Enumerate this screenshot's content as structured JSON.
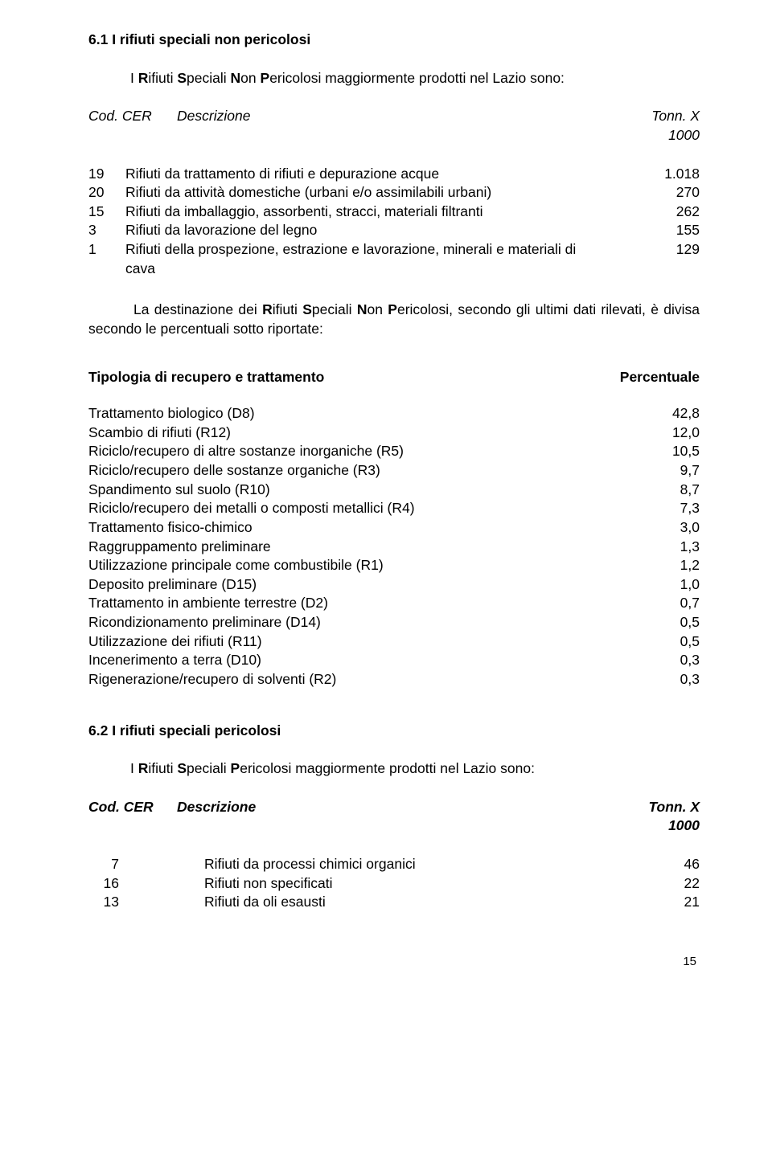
{
  "section1": {
    "heading": "6.1 I rifiuti speciali non pericolosi",
    "intro_pre": "I ",
    "intro_R": "R",
    "intro_ifiuti": "ifiuti ",
    "intro_S": "S",
    "intro_peciali": "peciali ",
    "intro_N": "N",
    "intro_on": "on ",
    "intro_P": "P",
    "intro_ericolosi": "ericolosi maggiormente prodotti nel Lazio sono:",
    "hdr_code": "Cod. CER",
    "hdr_desc": "Descrizione",
    "hdr_val": "Tonn. X 1000",
    "rows": [
      {
        "code": "19",
        "desc": "Rifiuti da trattamento di rifiuti e depurazione acque",
        "val": "1.018"
      },
      {
        "code": "20",
        "desc": "Rifiuti da attività domestiche (urbani e/o assimilabili urbani)",
        "val": "270"
      },
      {
        "code": "15",
        "desc": "Rifiuti da imballaggio, assorbenti, stracci, materiali filtranti",
        "val": "262"
      },
      {
        "code": " 3",
        "desc": "Rifiuti da lavorazione del legno",
        "val": "155"
      },
      {
        "code": " 1",
        "desc": "Rifiuti della prospezione, estrazione e lavorazione, minerali e materiali di cava",
        "val": "129"
      }
    ]
  },
  "para": {
    "t1": "La destinazione dei ",
    "R": "R",
    "ifiuti": "ifiuti ",
    "S": "S",
    "peciali": "peciali ",
    "N": "N",
    "on": "on ",
    "P": "P",
    "ericolosi": "ericolosi, secondo gli ultimi dati rilevati, è divisa secondo le percentuali sotto riportate:"
  },
  "recovery": {
    "hdr_left": "Tipologia di recupero e trattamento",
    "hdr_right": "Percentuale",
    "rows": [
      {
        "d": "Trattamento biologico (D8)",
        "v": "42,8"
      },
      {
        "d": "Scambio di rifiuti (R12)",
        "v": "12,0"
      },
      {
        "d": "Riciclo/recupero di altre sostanze inorganiche (R5)",
        "v": "10,5"
      },
      {
        "d": "Riciclo/recupero delle sostanze organiche (R3)",
        "v": "9,7"
      },
      {
        "d": "Spandimento sul suolo (R10)",
        "v": "8,7"
      },
      {
        "d": "Riciclo/recupero dei metalli o composti metallici (R4)",
        "v": "7,3"
      },
      {
        "d": "Trattamento fisico-chimico",
        "v": "3,0"
      },
      {
        "d": "Raggruppamento preliminare",
        "v": "1,3"
      },
      {
        "d": "Utilizzazione principale come combustibile (R1)",
        "v": "1,2"
      },
      {
        "d": "Deposito preliminare (D15)",
        "v": "1,0"
      },
      {
        "d": "Trattamento in ambiente terrestre (D2)",
        "v": "0,7"
      },
      {
        "d": "Ricondizionamento preliminare (D14)",
        "v": "0,5"
      },
      {
        "d": "Utilizzazione dei rifiuti (R11)",
        "v": "0,5"
      },
      {
        "d": "Incenerimento a terra (D10)",
        "v": "0,3"
      },
      {
        "d": "Rigenerazione/recupero di solventi (R2)",
        "v": "0,3"
      }
    ]
  },
  "section2": {
    "heading": "6.2 I rifiuti speciali pericolosi",
    "intro_pre": "I ",
    "intro_R": "R",
    "intro_ifiuti": "ifiuti ",
    "intro_S": "S",
    "intro_peciali": "peciali ",
    "intro_P": "P",
    "intro_ericolosi": "ericolosi maggiormente prodotti nel Lazio sono:",
    "hdr_code": "Cod. CER",
    "hdr_desc": "Descrizione",
    "hdr_val": "Tonn. X 1000",
    "rows": [
      {
        "code": "7",
        "desc": "Rifiuti da processi chimici organici",
        "val": "46"
      },
      {
        "code": "16",
        "desc": "Rifiuti non specificati",
        "val": "22"
      },
      {
        "code": "13",
        "desc": "Rifiuti da oli esausti",
        "val": "21"
      }
    ]
  },
  "page_number": "15"
}
